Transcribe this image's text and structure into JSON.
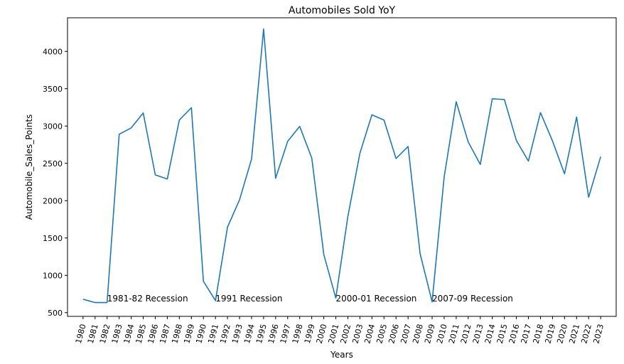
{
  "chart_data": {
    "type": "line",
    "title": "Automobiles Sold YoY",
    "xlabel": "Years",
    "ylabel": "Automobile_Sales_Points",
    "ylim": [
      450,
      4450
    ],
    "yticks": [
      500,
      1000,
      1500,
      2000,
      2500,
      3000,
      3500,
      4000
    ],
    "grid": false,
    "line_color": "#1f77b4",
    "x": [
      1980,
      1981,
      1982,
      1983,
      1984,
      1985,
      1986,
      1987,
      1988,
      1989,
      1990,
      1991,
      1992,
      1993,
      1994,
      1995,
      1996,
      1997,
      1998,
      1999,
      2000,
      2001,
      2002,
      2003,
      2004,
      2005,
      2006,
      2007,
      2008,
      2009,
      2010,
      2011,
      2012,
      2013,
      2014,
      2015,
      2016,
      2017,
      2018,
      2019,
      2020,
      2021,
      2022,
      2023
    ],
    "series": [
      {
        "values": [
          680,
          635,
          635,
          2890,
          2975,
          3175,
          2345,
          2290,
          3080,
          3245,
          920,
          660,
          1645,
          2010,
          2560,
          4300,
          2300,
          2795,
          2995,
          2570,
          1280,
          695,
          1790,
          2635,
          3150,
          3080,
          2565,
          2725,
          1290,
          645,
          2320,
          3325,
          2785,
          2485,
          3365,
          3355,
          2805,
          2530,
          3180,
          2800,
          2360,
          3120,
          2045,
          2590
        ]
      }
    ],
    "annotations": [
      {
        "text": "1981-82 Recession",
        "x": 1982,
        "y": 650
      },
      {
        "text": "1991 Recession",
        "x": 1991,
        "y": 650
      },
      {
        "text": "2000-01 Recession",
        "x": 2001,
        "y": 650
      },
      {
        "text": "2007-09 Recession",
        "x": 2009,
        "y": 650
      }
    ]
  }
}
